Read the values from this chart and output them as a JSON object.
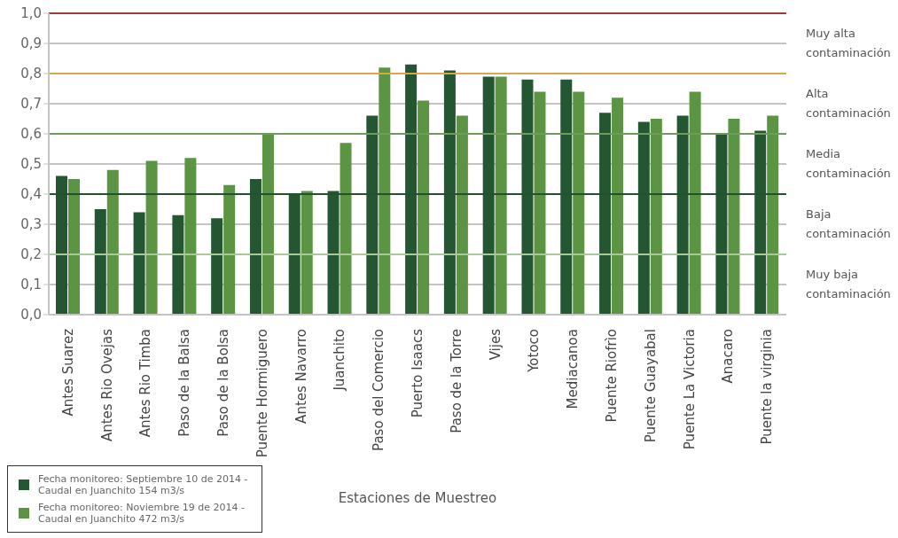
{
  "chart_data": {
    "type": "bar",
    "xlabel": "Estaciones de Muestreo",
    "categories": [
      "Antes Suarez",
      "Antes Rio Ovejas",
      "Antes Rio Timba",
      "Paso de la Balsa",
      "Paso de la Bolsa",
      "Puente Hormiguero",
      "Antes Navarro",
      "Juanchito",
      "Paso del Comercio",
      "Puerto Isaacs",
      "Paso de la Torre",
      "Vijes",
      "Yotoco",
      "Mediacanoa",
      "Puente Riofrìo",
      "Puente Guayabal",
      "Puente La  Victoria",
      "Anacaro",
      "Puente la virginia"
    ],
    "series": [
      {
        "name": "Fecha monitoreo: Septiembre 10 de 2014 - Caudal en Juanchito 154 m3/s",
        "color": "#245632",
        "values": [
          0.46,
          0.35,
          0.34,
          0.33,
          0.32,
          0.45,
          0.4,
          0.41,
          0.66,
          0.83,
          0.81,
          0.79,
          0.78,
          0.78,
          0.67,
          0.64,
          0.66,
          0.6,
          0.61
        ]
      },
      {
        "name": "Fecha monitoreo: Noviembre 19 de 2014 - Caudal en Juanchito 472 m3/s",
        "color": "#5b9442",
        "values": [
          0.45,
          0.48,
          0.51,
          0.52,
          0.43,
          0.6,
          0.41,
          0.57,
          0.82,
          0.71,
          0.66,
          0.79,
          0.74,
          0.74,
          0.72,
          0.65,
          0.74,
          0.65,
          0.66
        ]
      }
    ],
    "ylim": [
      0,
      1
    ],
    "yticks": [
      {
        "value": 0,
        "label": "0,0"
      },
      {
        "value": 0.1,
        "label": "0,1"
      },
      {
        "value": 0.2,
        "label": "0,2"
      },
      {
        "value": 0.3,
        "label": "0,3"
      },
      {
        "value": 0.4,
        "label": "0,4"
      },
      {
        "value": 0.5,
        "label": "0,5"
      },
      {
        "value": 0.6,
        "label": "0,6"
      },
      {
        "value": 0.7,
        "label": "0,7"
      },
      {
        "value": 0.8,
        "label": "0,8"
      },
      {
        "value": 0.9,
        "label": "0,9"
      },
      {
        "value": 1,
        "label": "1,0"
      }
    ],
    "grid": "y",
    "legend": "bottom left",
    "ref_lines": [
      {
        "axis": "y",
        "value": 1,
        "color": "#a03a3a"
      },
      {
        "axis": "y",
        "value": 0.8,
        "color": "#d4a84e"
      },
      {
        "axis": "y",
        "value": 0.6,
        "color": "#6e9c5e"
      },
      {
        "axis": "y",
        "value": 0.4,
        "color": "#23502e"
      },
      {
        "axis": "y",
        "value": 0.2,
        "color": "#a9c99b"
      }
    ],
    "annotations": [
      "Muy alta contaminación",
      "Alta contaminación",
      "Media contaminación",
      "Baja contaminación",
      "Muy baja contaminación"
    ]
  }
}
